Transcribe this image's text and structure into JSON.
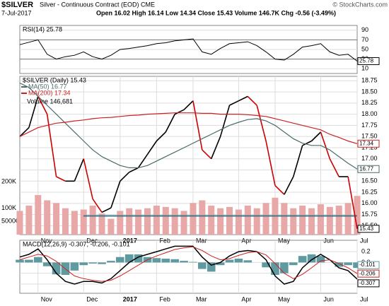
{
  "header": {
    "symbol": "$SILVER",
    "description": "Silver - Continuous Contract (EOD) CME",
    "date": "7-Jul-2017",
    "quote": "Open 16.02 High 16.14 Low 14.34 Close 15.43 Volume 146.7K Chg -0.56 (-3.49%)",
    "credit": "© StockCharts.com"
  },
  "chart_data": [
    {
      "type": "line",
      "legend": "RSI(14) 25.78",
      "ylim": [
        0,
        100
      ],
      "yticks": [
        90,
        70,
        50,
        30,
        10
      ],
      "levels": [
        70,
        30
      ],
      "series": [
        {
          "name": "RSI(14)",
          "color": "#000000",
          "last_label": "25.78",
          "values": [
            60,
            65,
            70,
            40,
            30,
            35,
            38,
            45,
            35,
            30,
            38,
            50,
            52,
            55,
            58,
            62,
            64,
            68,
            70,
            72,
            45,
            40,
            52,
            62,
            64,
            66,
            58,
            45,
            30,
            28,
            40,
            55,
            58,
            62,
            45,
            38,
            40,
            25.78
          ]
        }
      ]
    },
    {
      "type": "price",
      "legend": "$SILVER (Daily) 15.43",
      "ylim": [
        15.3,
        18.85
      ],
      "yticks": [
        18.75,
        {
          "value": 18.5,
          "label": "18.50"
        },
        18.25,
        {
          "value": 18,
          "label": "18.00"
        },
        17.75,
        {
          "value": 17.5,
          "label": "17.50"
        },
        17.25,
        {
          "value": 17,
          "label": "17.00"
        },
        16.75,
        {
          "value": 16.5,
          "label": "16.50"
        },
        16.25,
        {
          "value": 16,
          "label": "16.00"
        },
        15.75,
        {
          "value": 15.5,
          "label": "15.50"
        }
      ],
      "categories": [
        null,
        null,
        "Nov",
        null,
        null,
        null,
        null,
        "Dec",
        null,
        null,
        null,
        "2017",
        null,
        null,
        null,
        "Feb",
        null,
        null,
        null,
        "Mar",
        null,
        null,
        null,
        null,
        "Apr",
        null,
        null,
        null,
        "May",
        null,
        null,
        null,
        null,
        "Jun",
        null,
        null,
        null,
        "Jul"
      ],
      "up_color": "#000000",
      "down_color": "#cc0000",
      "series": [
        {
          "name": "$SILVER (Daily)",
          "last_label": "15.43",
          "color": "#000000",
          "values": [
            17.5,
            17.7,
            18.4,
            18.0,
            16.6,
            16.5,
            16.5,
            17.0,
            16.1,
            15.8,
            15.9,
            16.5,
            16.7,
            16.8,
            17.1,
            17.4,
            17.6,
            18.0,
            18.1,
            18.3,
            17.2,
            17.0,
            17.5,
            18.2,
            18.3,
            18.4,
            18.2,
            17.4,
            16.4,
            16.2,
            16.6,
            17.3,
            17.4,
            17.6,
            17.0,
            16.6,
            16.6,
            15.43
          ]
        },
        {
          "name": "MA(50) 16.77",
          "last_label": "16.77",
          "color": "#4a6b6b",
          "values": [
            18.7,
            18.6,
            18.4,
            18.2,
            18.0,
            17.8,
            17.6,
            17.4,
            17.2,
            17.05,
            16.95,
            16.85,
            16.8,
            16.8,
            16.85,
            16.95,
            17.05,
            17.15,
            17.25,
            17.35,
            17.45,
            17.55,
            17.65,
            17.75,
            17.82,
            17.88,
            17.9,
            17.85,
            17.75,
            17.6,
            17.45,
            17.35,
            17.3,
            17.3,
            17.2,
            17.05,
            16.9,
            16.77
          ]
        },
        {
          "name": "MA(200) 17.34",
          "last_label": "17.34",
          "color": "#cc2222",
          "values": [
            17.5,
            17.6,
            17.7,
            17.75,
            17.8,
            17.82,
            17.85,
            17.87,
            17.9,
            17.92,
            17.93,
            17.95,
            17.97,
            17.98,
            18.0,
            18.01,
            18.02,
            18.03,
            18.03,
            18.03,
            18.02,
            18.02,
            18.0,
            18.0,
            18.0,
            17.99,
            17.97,
            17.95,
            17.9,
            17.85,
            17.8,
            17.75,
            17.7,
            17.65,
            17.55,
            17.48,
            17.4,
            17.34
          ]
        }
      ],
      "volume": {
        "name": "Volume 146,681",
        "color": "#e8a8a8",
        "lim": [
          0,
          600000
        ],
        "ticks": [
          {
            "value": 200000,
            "label": "200K"
          },
          {
            "value": 100000,
            "label": "100K"
          },
          50000
        ],
        "values": [
          90000,
          110000,
          150000,
          130000,
          120000,
          100000,
          90000,
          95000,
          110000,
          80000,
          60000,
          90000,
          100000,
          95000,
          100000,
          110000,
          105000,
          100000,
          90000,
          120000,
          130000,
          110000,
          100000,
          105000,
          95000,
          110000,
          100000,
          120000,
          140000,
          120000,
          100000,
          110000,
          100000,
          115000,
          105000,
          110000,
          120000,
          146681
        ]
      },
      "hline": {
        "value": 15.72,
        "color": "#3d7a8a"
      }
    },
    {
      "type": "macd",
      "legend": "MACD(12,26,9) -0.307, -0.206, -0.101",
      "ylim": [
        -0.57,
        0.41
      ],
      "yticks": [
        0.2,
        {
          "value": 0,
          "label": "0.0"
        },
        -0.2,
        -0.4
      ],
      "categories": [
        null,
        null,
        "Nov",
        null,
        null,
        null,
        null,
        "Dec",
        null,
        null,
        null,
        "2017",
        null,
        null,
        null,
        "Feb",
        null,
        null,
        null,
        "Mar",
        null,
        null,
        null,
        null,
        "Apr",
        null,
        null,
        null,
        "May",
        null,
        null,
        null,
        null,
        "Jun",
        null,
        null,
        null,
        "Jul"
      ],
      "series": [
        {
          "name": "MACD",
          "color": "#000000",
          "last_label": "-0.307",
          "values": [
            0.1,
            0.15,
            0.25,
            0.05,
            -0.2,
            -0.35,
            -0.4,
            -0.35,
            -0.35,
            -0.38,
            -0.3,
            -0.15,
            0.0,
            0.1,
            0.15,
            0.2,
            0.25,
            0.3,
            0.3,
            0.3,
            0.1,
            -0.05,
            0.0,
            0.12,
            0.2,
            0.22,
            0.2,
            0.05,
            -0.25,
            -0.4,
            -0.35,
            -0.1,
            0.05,
            0.15,
            0.05,
            -0.1,
            -0.15,
            -0.307
          ]
        },
        {
          "name": "Signal",
          "color": "#cc2222",
          "last_label": "-0.206",
          "values": [
            0.05,
            0.1,
            0.15,
            0.12,
            0.02,
            -0.12,
            -0.25,
            -0.3,
            -0.33,
            -0.35,
            -0.33,
            -0.25,
            -0.15,
            -0.05,
            0.05,
            0.12,
            0.18,
            0.24,
            0.27,
            0.29,
            0.22,
            0.12,
            0.05,
            0.07,
            0.13,
            0.18,
            0.2,
            0.14,
            -0.02,
            -0.2,
            -0.3,
            -0.22,
            -0.1,
            0.03,
            0.05,
            -0.02,
            -0.1,
            -0.206
          ]
        },
        {
          "name": "Histogram",
          "color": "#5f9aa0",
          "last_label": "-0.101",
          "values": [
            0.05,
            0.05,
            0.1,
            -0.07,
            -0.22,
            -0.23,
            -0.15,
            -0.05,
            -0.02,
            -0.03,
            0.03,
            0.1,
            0.15,
            0.15,
            0.1,
            0.08,
            0.07,
            0.06,
            0.03,
            0.01,
            -0.12,
            -0.17,
            -0.05,
            0.05,
            0.07,
            0.04,
            0,
            -0.09,
            -0.23,
            -0.2,
            -0.05,
            0.12,
            0.15,
            0.12,
            0,
            -0.08,
            -0.05,
            -0.101
          ]
        }
      ]
    }
  ]
}
